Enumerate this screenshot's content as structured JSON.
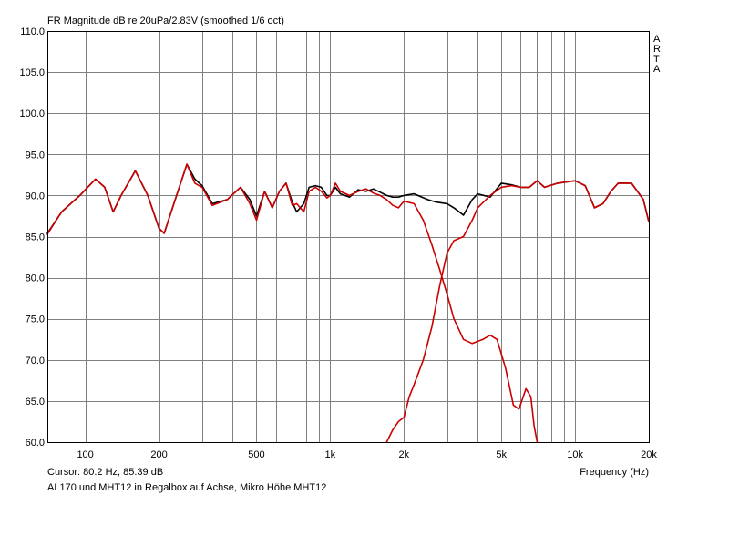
{
  "chart_data": {
    "type": "line",
    "title": "FR Magnitude dB re 20uPa/2.83V (smoothed 1/6 oct)",
    "watermark": [
      "A",
      "R",
      "T",
      "A"
    ],
    "xlabel": "Frequency (Hz)",
    "ylabel": "",
    "xscale": "log",
    "xlim": [
      70,
      20000
    ],
    "ylim": [
      60,
      110
    ],
    "grid": true,
    "legend": "none",
    "x_ticks": [
      {
        "value": 100,
        "label": "100"
      },
      {
        "value": 200,
        "label": "200"
      },
      {
        "value": 500,
        "label": "500"
      },
      {
        "value": 1000,
        "label": "1k"
      },
      {
        "value": 2000,
        "label": "2k"
      },
      {
        "value": 5000,
        "label": "5k"
      },
      {
        "value": 10000,
        "label": "10k"
      },
      {
        "value": 20000,
        "label": "20k"
      }
    ],
    "x_gridlines": [
      100,
      200,
      300,
      400,
      500,
      600,
      700,
      800,
      900,
      1000,
      2000,
      3000,
      4000,
      5000,
      6000,
      7000,
      8000,
      9000,
      10000
    ],
    "y_ticks": [
      {
        "value": 110,
        "label": "110.0"
      },
      {
        "value": 105,
        "label": "105.0"
      },
      {
        "value": 100,
        "label": "100.0"
      },
      {
        "value": 95,
        "label": "95.0"
      },
      {
        "value": 90,
        "label": "90.0"
      },
      {
        "value": 85,
        "label": "85.0"
      },
      {
        "value": 80,
        "label": "80.0"
      },
      {
        "value": 75,
        "label": "75.0"
      },
      {
        "value": 70,
        "label": "70.0"
      },
      {
        "value": 65,
        "label": "65.0"
      },
      {
        "value": 60,
        "label": "60.0"
      }
    ],
    "series": [
      {
        "color": "#000000",
        "points": [
          [
            70,
            85.4
          ],
          [
            80,
            88.0
          ],
          [
            95,
            90.0
          ],
          [
            110,
            92.0
          ],
          [
            120,
            91.0
          ],
          [
            130,
            88.0
          ],
          [
            140,
            90.0
          ],
          [
            160,
            93.0
          ],
          [
            180,
            90.0
          ],
          [
            200,
            86.0
          ],
          [
            210,
            85.4
          ],
          [
            230,
            89.0
          ],
          [
            260,
            93.8
          ],
          [
            280,
            92.0
          ],
          [
            300,
            91.2
          ],
          [
            330,
            89.0
          ],
          [
            380,
            89.5
          ],
          [
            430,
            91.0
          ],
          [
            470,
            89.5
          ],
          [
            500,
            87.5
          ],
          [
            540,
            90.5
          ],
          [
            580,
            88.5
          ],
          [
            620,
            90.5
          ],
          [
            660,
            91.5
          ],
          [
            700,
            89.2
          ],
          [
            730,
            88.0
          ],
          [
            780,
            89.0
          ],
          [
            820,
            91.0
          ],
          [
            870,
            91.2
          ],
          [
            920,
            91.0
          ],
          [
            970,
            90.0
          ],
          [
            1000,
            90.0
          ],
          [
            1050,
            91.0
          ],
          [
            1100,
            90.2
          ],
          [
            1200,
            89.8
          ],
          [
            1300,
            90.7
          ],
          [
            1400,
            90.5
          ],
          [
            1500,
            90.8
          ],
          [
            1600,
            90.4
          ],
          [
            1700,
            90.0
          ],
          [
            1800,
            89.8
          ],
          [
            1900,
            89.8
          ],
          [
            2000,
            90.0
          ],
          [
            2200,
            90.2
          ],
          [
            2500,
            89.5
          ],
          [
            2700,
            89.2
          ],
          [
            3000,
            89.0
          ],
          [
            3200,
            88.5
          ],
          [
            3500,
            87.6
          ],
          [
            3800,
            89.5
          ],
          [
            4000,
            90.2
          ],
          [
            4500,
            89.8
          ],
          [
            5000,
            91.5
          ],
          [
            5500,
            91.3
          ],
          [
            6000,
            91.0
          ],
          [
            6500,
            91.0
          ],
          [
            7000,
            91.8
          ],
          [
            7500,
            91.0
          ],
          [
            8500,
            91.5
          ],
          [
            10000,
            91.8
          ],
          [
            11000,
            91.2
          ],
          [
            12000,
            88.5
          ],
          [
            13000,
            89.0
          ],
          [
            14000,
            90.5
          ],
          [
            15000,
            91.5
          ],
          [
            17000,
            91.5
          ],
          [
            19000,
            89.5
          ],
          [
            20000,
            86.8
          ]
        ]
      },
      {
        "color": "#cc0000",
        "points": [
          [
            70,
            85.3
          ],
          [
            80,
            88.0
          ],
          [
            95,
            90.0
          ],
          [
            110,
            92.0
          ],
          [
            120,
            91.0
          ],
          [
            130,
            88.0
          ],
          [
            140,
            90.0
          ],
          [
            160,
            93.0
          ],
          [
            180,
            90.0
          ],
          [
            200,
            86.0
          ],
          [
            210,
            85.4
          ],
          [
            230,
            89.0
          ],
          [
            260,
            93.8
          ],
          [
            280,
            91.5
          ],
          [
            300,
            91.0
          ],
          [
            330,
            88.8
          ],
          [
            380,
            89.5
          ],
          [
            430,
            91.0
          ],
          [
            470,
            89.0
          ],
          [
            500,
            87.0
          ],
          [
            540,
            90.5
          ],
          [
            580,
            88.5
          ],
          [
            620,
            90.5
          ],
          [
            660,
            91.5
          ],
          [
            700,
            88.8
          ],
          [
            730,
            89.0
          ],
          [
            780,
            88.0
          ],
          [
            820,
            90.5
          ],
          [
            870,
            91.0
          ],
          [
            920,
            90.5
          ],
          [
            970,
            89.7
          ],
          [
            1000,
            90.0
          ],
          [
            1050,
            91.5
          ],
          [
            1100,
            90.5
          ],
          [
            1200,
            90.0
          ],
          [
            1300,
            90.5
          ],
          [
            1400,
            90.8
          ],
          [
            1500,
            90.3
          ],
          [
            1600,
            90.0
          ],
          [
            1700,
            89.5
          ],
          [
            1800,
            88.8
          ],
          [
            1900,
            88.5
          ],
          [
            2000,
            89.3
          ],
          [
            2200,
            89.0
          ],
          [
            2400,
            87.0
          ],
          [
            2600,
            84.0
          ],
          [
            2800,
            81.0
          ],
          [
            3000,
            78.0
          ],
          [
            3200,
            75.0
          ],
          [
            3500,
            72.5
          ],
          [
            3800,
            72.0
          ],
          [
            4200,
            72.5
          ],
          [
            4500,
            73.0
          ],
          [
            4800,
            72.5
          ],
          [
            5200,
            69.0
          ],
          [
            5600,
            64.5
          ],
          [
            5900,
            64.0
          ],
          [
            6300,
            66.5
          ],
          [
            6600,
            65.5
          ],
          [
            6800,
            62.0
          ],
          [
            7000,
            60.0
          ]
        ]
      },
      {
        "color": "#cc0000",
        "points": [
          [
            1700,
            60.0
          ],
          [
            1800,
            61.5
          ],
          [
            1900,
            62.5
          ],
          [
            2000,
            63.0
          ],
          [
            2100,
            65.5
          ],
          [
            2200,
            67.0
          ],
          [
            2400,
            70.0
          ],
          [
            2600,
            74.0
          ],
          [
            2800,
            79.0
          ],
          [
            3000,
            83.0
          ],
          [
            3200,
            84.5
          ],
          [
            3500,
            85.0
          ],
          [
            3800,
            87.0
          ],
          [
            4000,
            88.5
          ],
          [
            4500,
            90.0
          ],
          [
            5000,
            91.0
          ],
          [
            5500,
            91.2
          ],
          [
            6000,
            91.0
          ],
          [
            6500,
            91.0
          ],
          [
            7000,
            91.8
          ],
          [
            7500,
            91.0
          ],
          [
            8500,
            91.5
          ],
          [
            10000,
            91.8
          ],
          [
            11000,
            91.2
          ],
          [
            12000,
            88.5
          ],
          [
            13000,
            89.0
          ],
          [
            14000,
            90.5
          ],
          [
            15000,
            91.5
          ],
          [
            17000,
            91.5
          ],
          [
            19000,
            89.5
          ],
          [
            20000,
            86.8
          ]
        ]
      }
    ]
  },
  "footer": {
    "cursor": "Cursor: 80.2 Hz, 85.39 dB",
    "caption": "AL170 und MHT12 in Regalbox auf Achse, Mikro Höhe MHT12"
  }
}
